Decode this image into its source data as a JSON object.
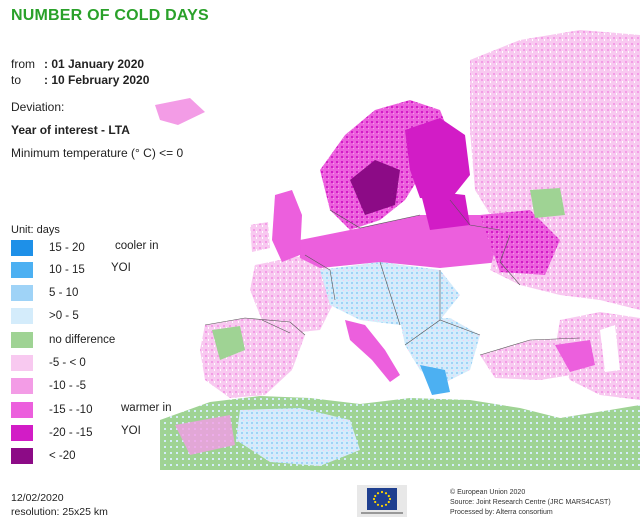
{
  "header": {
    "title": "NUMBER OF COLD DAYS",
    "from_label": "from",
    "from_value": ": 01 January 2020",
    "to_label": "to",
    "to_value": ": 10 February 2020",
    "deviation_label": "Deviation:",
    "interest_label": "Year of interest - LTA",
    "min_temp_label": "Minimum temperature (° C) <= 0"
  },
  "legend": {
    "unit": "Unit:  days",
    "items": [
      {
        "label": "15 - 20",
        "color": "#1e90e8"
      },
      {
        "label": "10 - 15",
        "color": "#4cb0f2"
      },
      {
        "label": "5 - 10",
        "color": "#9fd3f7"
      },
      {
        "label": ">0 - 5",
        "color": "#d4ecfb"
      },
      {
        "label": "no difference",
        "color": "#9fd394"
      },
      {
        "label": "-5 - < 0",
        "color": "#f8c9f0"
      },
      {
        "label": "-10 - -5",
        "color": "#f39ce6"
      },
      {
        "label": "-15 - -10",
        "color": "#ec5fdd"
      },
      {
        "label": "-20 - -15",
        "color": "#d21cc6"
      },
      {
        "label": "< -20",
        "color": "#8c0b86"
      }
    ],
    "cooler_label": "cooler in",
    "cooler_sub": "YOI",
    "warmer_label": "warmer in",
    "warmer_sub": "YOI"
  },
  "footer": {
    "date": "12/02/2020",
    "resolution": "resolution:  25x25 km",
    "copyright": "© European Union 2020",
    "source": "Source: Joint Research Centre (JRC MARS4CAST)",
    "processed": "Processed by: Alterra consortium"
  },
  "colors": {
    "sea": "#ffffff",
    "country_border": "#555555",
    "title_green": "#2aa12a",
    "eu_blue": "#1f3f8f",
    "eu_star": "#ffd700"
  }
}
